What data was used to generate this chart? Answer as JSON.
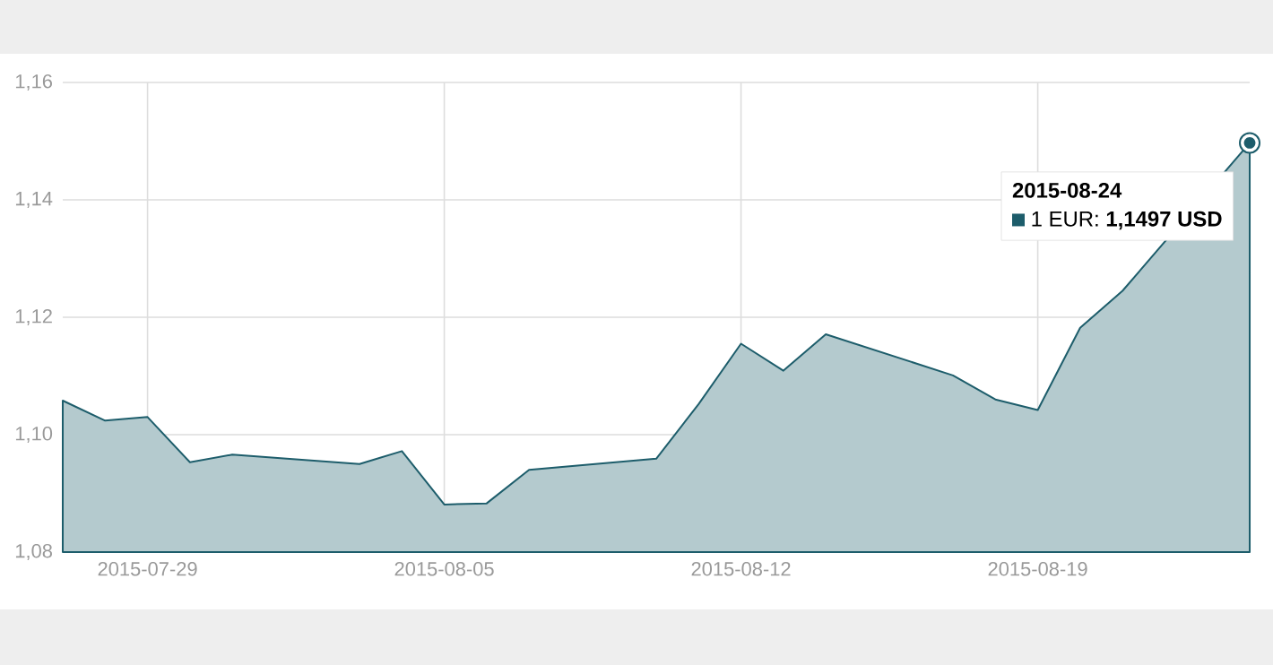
{
  "chart_data": {
    "type": "area",
    "x": [
      "2015-07-27",
      "2015-07-28",
      "2015-07-29",
      "2015-07-30",
      "2015-07-31",
      "2015-08-03",
      "2015-08-04",
      "2015-08-05",
      "2015-08-06",
      "2015-08-07",
      "2015-08-10",
      "2015-08-11",
      "2015-08-12",
      "2015-08-13",
      "2015-08-14",
      "2015-08-17",
      "2015-08-18",
      "2015-08-19",
      "2015-08-20",
      "2015-08-21",
      "2015-08-24"
    ],
    "series": [
      {
        "color": "#1d5d6b",
        "values": [
          1.1058,
          1.1024,
          1.103,
          1.0953,
          1.0966,
          1.095,
          1.0972,
          1.0881,
          1.0883,
          1.094,
          1.0959,
          1.1052,
          1.1155,
          1.1109,
          1.1171,
          1.1101,
          1.106,
          1.1042,
          1.1182,
          1.1245,
          1.1497
        ]
      }
    ],
    "xlim": [
      "2015-07-27",
      "2015-08-24"
    ],
    "xticks": [
      "2015-07-29",
      "2015-08-05",
      "2015-08-12",
      "2015-08-19"
    ],
    "ylim": [
      1.08,
      1.16
    ],
    "yticks": [
      {
        "value": 1.08,
        "label": "1,08"
      },
      {
        "value": 1.1,
        "label": "1,10"
      },
      {
        "value": 1.12,
        "label": "1,12"
      },
      {
        "value": 1.14,
        "label": "1,14"
      },
      {
        "value": 1.16,
        "label": "1,16"
      }
    ],
    "grid": true,
    "annotations": [
      "2015-08-24",
      "1 EUR: **1,1497 USD**"
    ]
  }
}
